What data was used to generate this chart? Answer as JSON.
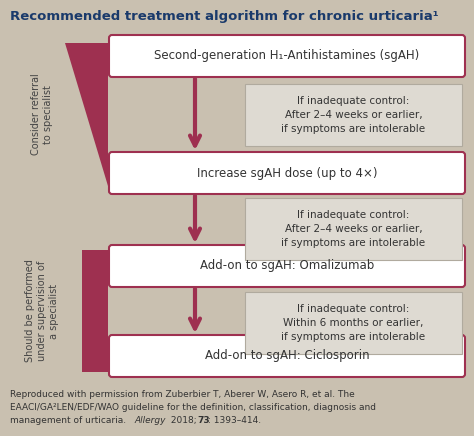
{
  "title": "Recommended treatment algorithm for chronic urticaria¹",
  "title_color": "#1a3a6b",
  "background_color": "#c9c0b0",
  "box_bg": "#ffffff",
  "box_border": "#9e3050",
  "arrow_color": "#9e3050",
  "side_bar_color": "#9e3050",
  "note_bg": "#dedad2",
  "note_border": "#b0aa9e",
  "main_boxes": [
    "Second-generation H₁-Antihistamines (sgAH)",
    "Increase sgAH dose (up to 4×)",
    "Add-on to sgAH: Omalizumab",
    "Add-on to sgAH: Ciclosporin"
  ],
  "notes": [
    "If inadequate control:\nAfter 2–4 weeks or earlier,\nif symptoms are intolerable",
    "If inadequate control:\nAfter 2–4 weeks or earlier,\nif symptoms are intolerable",
    "If inadequate control:\nWithin 6 months or earlier,\nif symptoms are intolerable"
  ],
  "left_label_top": "Consider referral\nto specialist",
  "left_label_bottom": "Should be performed\nunder supervision of\na specialist",
  "font_size_title": 9.5,
  "font_size_box": 8.5,
  "font_size_note": 7.5,
  "font_size_label": 7.0,
  "font_size_caption": 6.5
}
